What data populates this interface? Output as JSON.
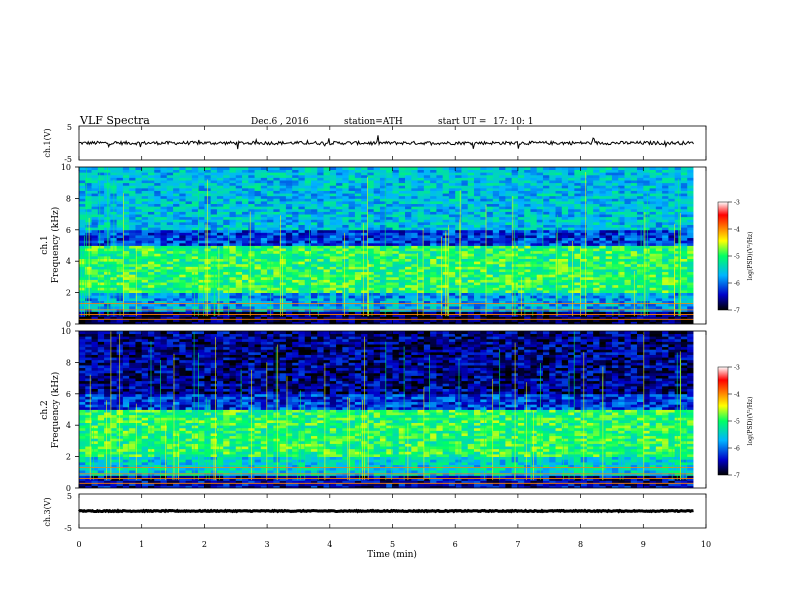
{
  "header": {
    "title": "VLF  Spectra",
    "date": "Dec.6  , 2016",
    "station": "station=ATH",
    "start_label": "start  UT  =",
    "start_time": "17: 10: 1"
  },
  "panels": {
    "ch1_waveform": {
      "ylabel": "ch.1(V)",
      "ytick_top": "5",
      "ytick_bottom": "-5"
    },
    "ch1_spectrogram": {
      "ylabel_line1": "ch.1",
      "ylabel_line2": "Frequency (kHz)"
    },
    "ch2_spectrogram": {
      "ylabel_line1": "ch.2",
      "ylabel_line2": "Frequency (kHz)"
    },
    "ch3_waveform": {
      "ylabel": "ch.3(V)",
      "ytick_top": "5",
      "ytick_bottom": "-5"
    }
  },
  "xaxis": {
    "label": "Time  (min)"
  },
  "colorbar": {
    "label": "log(PSD)(V²/Hz)",
    "ticks": [
      "-3",
      "-4",
      "-5",
      "-6",
      "-7"
    ]
  },
  "chart_data": [
    {
      "type": "line",
      "name": "ch1 waveform",
      "xlim": [
        0,
        10
      ],
      "ylim": [
        -5,
        5
      ],
      "x_range_data": [
        0,
        9.8
      ],
      "yticks": [
        5,
        -5
      ],
      "mean_level": 0,
      "noise_amplitude": 0.5
    },
    {
      "type": "heatmap",
      "name": "ch1 spectrogram",
      "xlim": [
        0,
        10
      ],
      "ylim": [
        0,
        10
      ],
      "xticks": [
        0,
        1,
        2,
        3,
        4,
        5,
        6,
        7,
        8,
        9,
        10
      ],
      "yticks": [
        0,
        2,
        4,
        6,
        8,
        10
      ],
      "color_scale_log10_psd": [
        -7,
        -3
      ],
      "bands": [
        {
          "freq_kHz": [
            0,
            0.8
          ],
          "level": -6.8
        },
        {
          "freq_kHz": [
            0.8,
            2
          ],
          "level": -5.8
        },
        {
          "freq_kHz": [
            2,
            5
          ],
          "level": -5.0
        },
        {
          "freq_kHz": [
            5,
            6
          ],
          "level": -6.2
        },
        {
          "freq_kHz": [
            6,
            10
          ],
          "level": -5.6
        }
      ]
    },
    {
      "type": "heatmap",
      "name": "ch2 spectrogram",
      "xlim": [
        0,
        10
      ],
      "ylim": [
        0,
        10
      ],
      "xticks": [
        0,
        1,
        2,
        3,
        4,
        5,
        6,
        7,
        8,
        9,
        10
      ],
      "yticks": [
        0,
        2,
        4,
        6,
        8,
        10
      ],
      "color_scale_log10_psd": [
        -7,
        -3
      ],
      "bands": [
        {
          "freq_kHz": [
            0,
            0.8
          ],
          "level": -6.5
        },
        {
          "freq_kHz": [
            0.8,
            2
          ],
          "level": -5.5
        },
        {
          "freq_kHz": [
            2,
            5
          ],
          "level": -5.0
        },
        {
          "freq_kHz": [
            5,
            6
          ],
          "level": -6.2
        },
        {
          "freq_kHz": [
            6,
            10
          ],
          "level": -6.6
        }
      ]
    },
    {
      "type": "line",
      "name": "ch3 waveform",
      "xlim": [
        0,
        10
      ],
      "ylim": [
        -5,
        5
      ],
      "x_range_data": [
        0,
        9.8
      ],
      "yticks": [
        5,
        -5
      ],
      "mean_level": 0,
      "noise_amplitude": 0.15
    }
  ],
  "colors": {
    "colormap": [
      "#000000",
      "#0000c8",
      "#00b4ff",
      "#00ff64",
      "#ffff00",
      "#ff8000",
      "#ff0000",
      "#ffffff"
    ]
  }
}
